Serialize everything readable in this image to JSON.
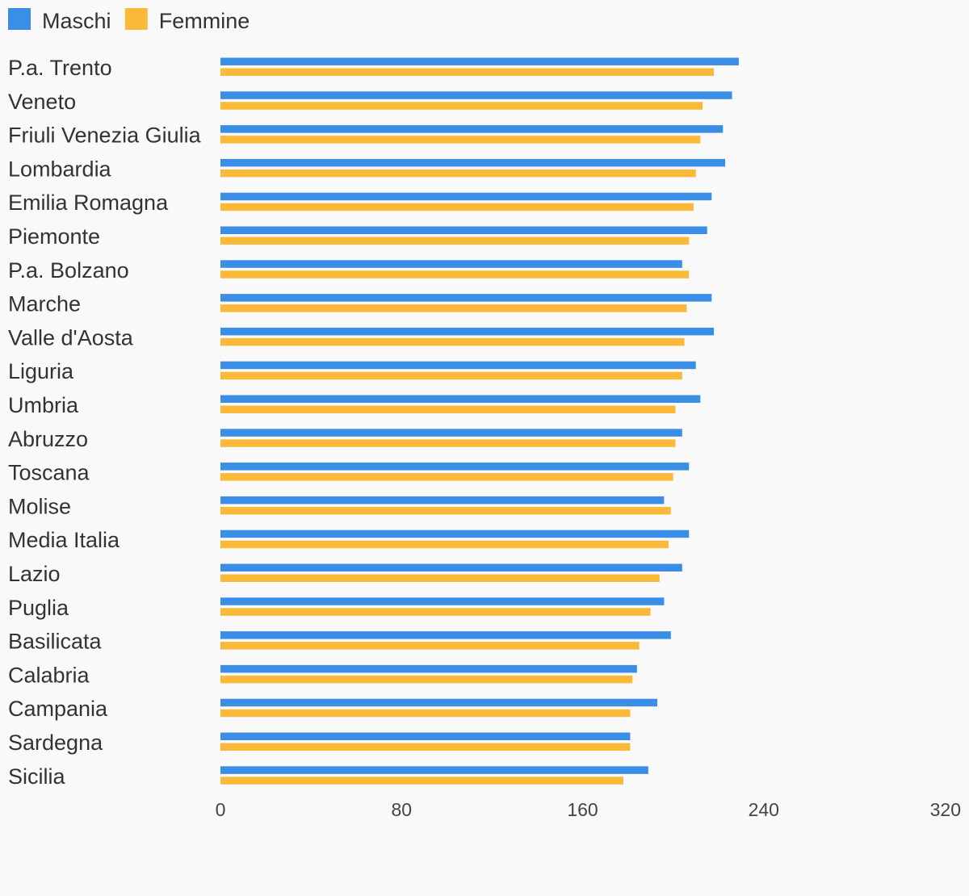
{
  "chart_data": {
    "type": "bar",
    "orientation": "horizontal",
    "title": "",
    "xlabel": "",
    "ylabel": "",
    "xlim": [
      0,
      320
    ],
    "ticks": [
      "0",
      "80",
      "160",
      "240",
      "320"
    ],
    "tick_values": [
      0,
      80,
      160,
      240,
      320
    ],
    "grid": false,
    "legend_position": "top-left",
    "categories": [
      "P.a. Trento",
      "Veneto",
      "Friuli Venezia Giulia",
      "Lombardia",
      "Emilia Romagna",
      "Piemonte",
      "P.a. Bolzano",
      "Marche",
      "Valle d'Aosta",
      "Liguria",
      "Umbria",
      "Abruzzo",
      "Toscana",
      "Molise",
      "Media Italia",
      "Lazio",
      "Puglia",
      "Basilicata",
      "Calabria",
      "Campania",
      "Sardegna",
      "Sicilia"
    ],
    "series": [
      {
        "name": "Maschi",
        "color": "#3a8ee6",
        "values": [
          229,
          226,
          222,
          223,
          217,
          215,
          204,
          217,
          218,
          210,
          212,
          204,
          207,
          196,
          207,
          204,
          196,
          199,
          184,
          193,
          181,
          189
        ]
      },
      {
        "name": "Femmine",
        "color": "#fbb93a",
        "values": [
          218,
          213,
          212,
          210,
          209,
          207,
          207,
          206,
          205,
          204,
          201,
          201,
          200,
          199,
          198,
          194,
          190,
          185,
          182,
          181,
          181,
          178
        ]
      }
    ]
  }
}
